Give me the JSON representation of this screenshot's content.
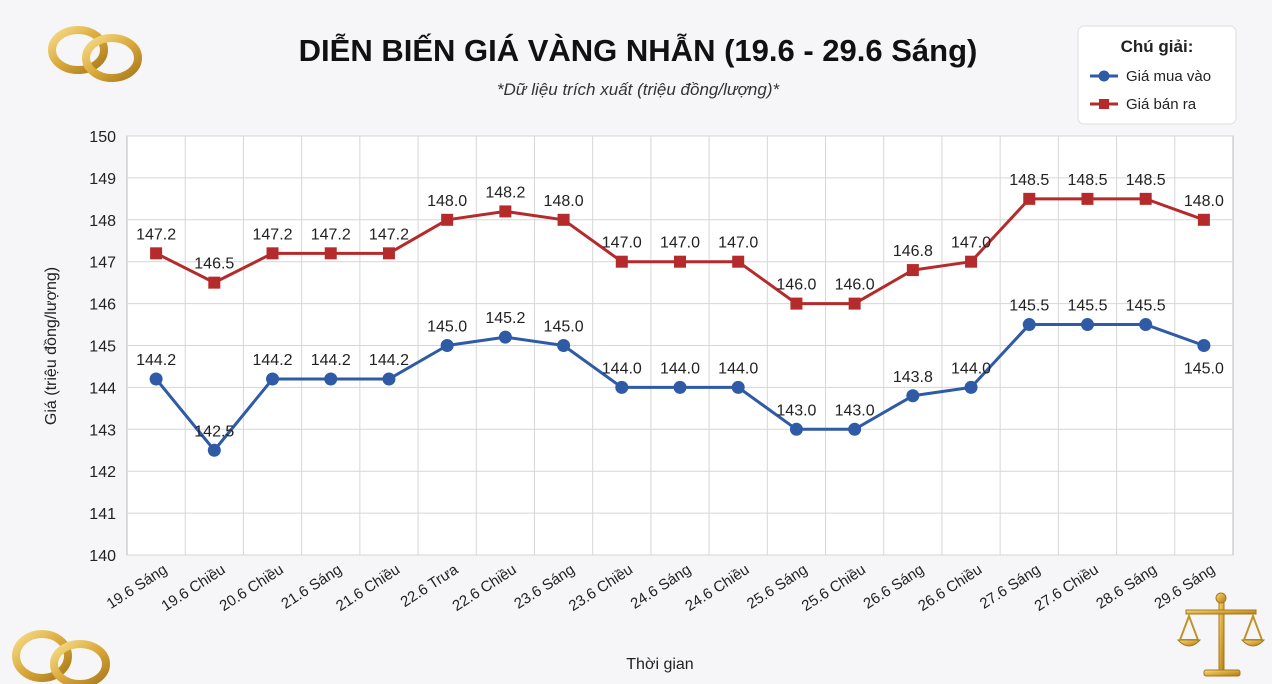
{
  "chart_data": {
    "type": "line",
    "title": "DIỄN BIẾN GIÁ VÀNG NHẪN (19.6 - 29.6 Sáng)",
    "subtitle": "*Dữ liệu trích xuất (triệu đồng/lượng)*",
    "xlabel": "Thời gian",
    "ylabel": "Giá (triệu đồng/lượng)",
    "ylim": [
      140,
      150
    ],
    "yticks": [
      "140",
      "141",
      "142",
      "143",
      "144",
      "145",
      "146",
      "147",
      "148",
      "149",
      "150"
    ],
    "grid": true,
    "legend_position": "top-right",
    "legend_title": "Chú giải:",
    "categories": [
      "19.6 Sáng",
      "19.6 Chiều",
      "20.6 Chiều",
      "21.6 Sáng",
      "21.6 Chiều",
      "22.6 Trưa",
      "22.6 Chiều",
      "23.6 Sáng",
      "23.6 Chiều",
      "24.6 Sáng",
      "24.6 Chiều",
      "25.6 Sáng",
      "25.6 Chiều",
      "26.6 Sáng",
      "26.6 Chiều",
      "27.6 Sáng",
      "27.6 Chiều",
      "28.6 Sáng",
      "29.6 Sáng"
    ],
    "series": [
      {
        "name": "Giá mua vào",
        "color": "#2e5aa6",
        "marker": "circle",
        "values": [
          144.2,
          142.5,
          144.2,
          144.2,
          144.2,
          145.0,
          145.2,
          145.0,
          144.0,
          144.0,
          144.0,
          143.0,
          143.0,
          143.8,
          144.0,
          145.5,
          145.5,
          145.5,
          145.0
        ],
        "labels": [
          "144.2",
          "142.5",
          "144.2",
          "144.2",
          "144.2",
          "145.0",
          "145.2",
          "145.0",
          "144.0",
          "144.0",
          "144.0",
          "143.0",
          "143.0",
          "143.8",
          "144.0",
          "145.5",
          "145.5",
          "145.5",
          "145.0"
        ]
      },
      {
        "name": "Giá bán ra",
        "color": "#b52a2a",
        "marker": "square",
        "values": [
          147.2,
          146.5,
          147.2,
          147.2,
          147.2,
          148.0,
          148.2,
          148.0,
          147.0,
          147.0,
          147.0,
          146.0,
          146.0,
          146.8,
          147.0,
          148.5,
          148.5,
          148.5,
          148.0
        ],
        "labels": [
          "147.2",
          "146.5",
          "147.2",
          "147.2",
          "147.2",
          "148.0",
          "148.2",
          "148.0",
          "147.0",
          "147.0",
          "147.0",
          "146.0",
          "146.0",
          "146.8",
          "147.0",
          "148.5",
          "148.5",
          "148.5",
          "148.0"
        ]
      }
    ]
  },
  "decorations": {
    "top_left": "wedding-rings-icon",
    "bottom_left": "wedding-rings-icon",
    "bottom_right": "balance-scale-icon"
  }
}
